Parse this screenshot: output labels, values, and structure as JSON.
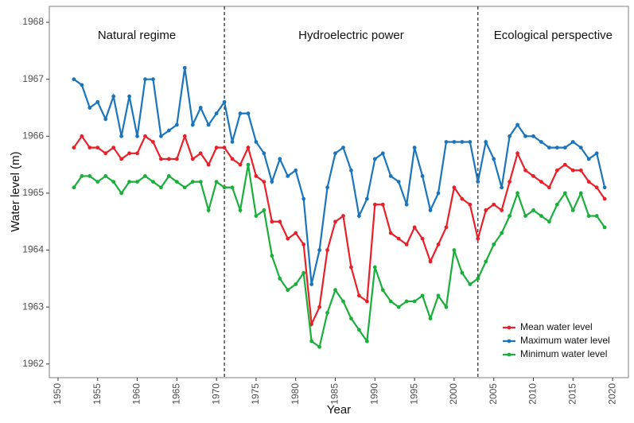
{
  "chart_data": {
    "type": "line",
    "xlabel": "Year",
    "ylabel": "Water level (m)",
    "x": [
      1952,
      1953,
      1954,
      1955,
      1956,
      1957,
      1958,
      1959,
      1960,
      1961,
      1962,
      1963,
      1964,
      1965,
      1966,
      1967,
      1968,
      1969,
      1970,
      1971,
      1972,
      1973,
      1974,
      1975,
      1976,
      1977,
      1978,
      1979,
      1980,
      1981,
      1982,
      1983,
      1984,
      1985,
      1986,
      1987,
      1988,
      1989,
      1990,
      1991,
      1992,
      1993,
      1994,
      1995,
      1996,
      1997,
      1998,
      1999,
      2000,
      2001,
      2002,
      2003,
      2004,
      2005,
      2006,
      2007,
      2008,
      2009,
      2010,
      2011,
      2012,
      2013,
      2014,
      2015,
      2016,
      2017,
      2018,
      2019
    ],
    "series": [
      {
        "name": "Mean water level",
        "color": "#e8202a",
        "values": [
          1965.8,
          1966.0,
          1965.8,
          1965.8,
          1965.7,
          1965.8,
          1965.6,
          1965.7,
          1965.7,
          1966.0,
          1965.9,
          1965.6,
          1965.6,
          1965.6,
          1966.0,
          1965.6,
          1965.7,
          1965.5,
          1965.8,
          1965.8,
          1965.6,
          1965.5,
          1965.8,
          1965.3,
          1965.2,
          1964.5,
          1964.5,
          1964.2,
          1964.3,
          1964.1,
          1962.7,
          1963.0,
          1964.0,
          1964.5,
          1964.6,
          1963.7,
          1963.2,
          1963.1,
          1964.8,
          1964.8,
          1964.3,
          1964.2,
          1964.1,
          1964.4,
          1964.2,
          1963.8,
          1964.1,
          1964.4,
          1965.1,
          1964.9,
          1964.8,
          1964.2,
          1964.7,
          1964.8,
          1964.7,
          1965.2,
          1965.7,
          1965.4,
          1965.3,
          1965.2,
          1965.1,
          1965.4,
          1965.5,
          1965.4,
          1965.4,
          1965.2,
          1965.1,
          1964.9
        ]
      },
      {
        "name": "Maximum water level",
        "color": "#1a75bc",
        "values": [
          1967.0,
          1966.9,
          1966.5,
          1966.6,
          1966.3,
          1966.7,
          1966.0,
          1966.7,
          1966.0,
          1967.0,
          1967.0,
          1966.0,
          1966.1,
          1966.2,
          1967.2,
          1966.2,
          1966.5,
          1966.2,
          1966.4,
          1966.6,
          1965.9,
          1966.4,
          1966.4,
          1965.9,
          1965.7,
          1965.2,
          1965.6,
          1965.3,
          1965.4,
          1964.9,
          1963.4,
          1964.0,
          1965.1,
          1965.7,
          1965.8,
          1965.4,
          1964.6,
          1964.9,
          1965.6,
          1965.7,
          1965.3,
          1965.2,
          1964.8,
          1965.8,
          1965.3,
          1964.7,
          1965.0,
          1965.9,
          1965.9,
          1965.9,
          1965.9,
          1965.2,
          1965.9,
          1965.6,
          1965.1,
          1966.0,
          1966.2,
          1966.0,
          1966.0,
          1965.9,
          1965.8,
          1965.8,
          1965.8,
          1965.9,
          1965.8,
          1965.6,
          1965.7,
          1965.1
        ]
      },
      {
        "name": "Minimum water level",
        "color": "#1aaf3a",
        "values": [
          1965.1,
          1965.3,
          1965.3,
          1965.2,
          1965.3,
          1965.2,
          1965.0,
          1965.2,
          1965.2,
          1965.3,
          1965.2,
          1965.1,
          1965.3,
          1965.2,
          1965.1,
          1965.2,
          1965.2,
          1964.7,
          1965.2,
          1965.1,
          1965.1,
          1964.7,
          1965.5,
          1964.6,
          1964.7,
          1963.9,
          1963.5,
          1963.3,
          1963.4,
          1963.6,
          1962.4,
          1962.3,
          1962.9,
          1963.3,
          1963.1,
          1962.8,
          1962.6,
          1962.4,
          1963.7,
          1963.3,
          1963.1,
          1963.0,
          1963.1,
          1963.1,
          1963.2,
          1962.8,
          1963.2,
          1963.0,
          1964.0,
          1963.6,
          1963.4,
          1963.5,
          1963.8,
          1964.1,
          1964.3,
          1964.6,
          1965.0,
          1964.6,
          1964.7,
          1964.6,
          1964.5,
          1964.8,
          1965.0,
          1964.7,
          1965.0,
          1964.6,
          1964.6,
          1964.4
        ]
      }
    ],
    "xlim": [
      1948.9,
      2022.0
    ],
    "xticks": [
      1950,
      1955,
      1960,
      1965,
      1970,
      1975,
      1980,
      1985,
      1990,
      1995,
      2000,
      2005,
      2010,
      2015,
      2020
    ],
    "ylim": [
      1961.76,
      1968.28
    ],
    "yticks": [
      1962,
      1963,
      1964,
      1965,
      1966,
      1967,
      1968
    ],
    "vlines": [
      1971,
      2003
    ],
    "annotations": [
      "Natural regime",
      "Hydroelectric power",
      "Ecological perspective"
    ],
    "legend": "bottom-right",
    "grid": false
  }
}
